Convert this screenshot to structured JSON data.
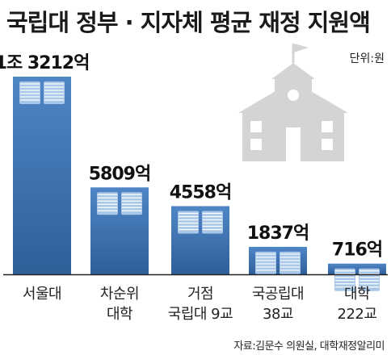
{
  "title": "국립대 정부 · 지자체 평균 재정 지원액",
  "unit": "단위:원",
  "source": "자료:김문수 의원실, 대학재정알리미",
  "icon": "school-building-icon",
  "colors": {
    "bar_top": "#4f86c6",
    "bar_bottom": "#2f5f99",
    "book": "#a9c7e8",
    "book_edge": "#ffffff",
    "school": "#d4d4d4",
    "axis": "#222222"
  },
  "chart_data": {
    "type": "bar",
    "title": "국립대 정부 · 지자체 평균 재정 지원액",
    "unit": "원",
    "categories": [
      [
        "서울대"
      ],
      [
        "차순위",
        "대학"
      ],
      [
        "거점",
        "국립대 9교"
      ],
      [
        "국공립대",
        "38교"
      ],
      [
        "대학",
        "222교"
      ]
    ],
    "values": [
      13212,
      5809,
      4558,
      1837,
      716
    ],
    "value_labels": [
      "1조 3212억",
      "5809억",
      "4558억",
      "1837억",
      "716억"
    ],
    "ylim": [
      0,
      13212
    ],
    "grid": false,
    "legend": "none"
  }
}
